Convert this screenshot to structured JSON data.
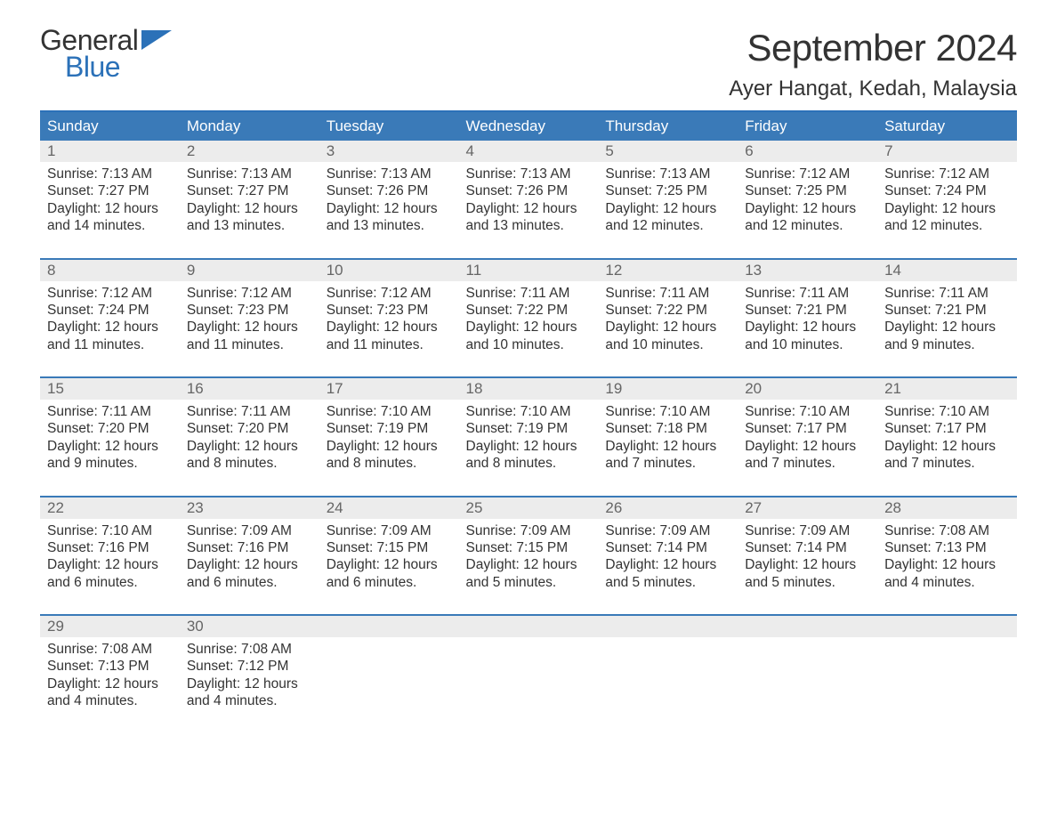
{
  "logo": {
    "text_general": "General",
    "text_blue": "Blue",
    "flag_color": "#2b71b8"
  },
  "title": "September 2024",
  "location": "Ayer Hangat, Kedah, Malaysia",
  "colors": {
    "header_bg": "#3a7ab8",
    "header_border": "#2b71b8",
    "daynum_bg": "#ececec",
    "daynum_text": "#666666",
    "body_text": "#333333",
    "background": "#ffffff"
  },
  "day_headers": [
    "Sunday",
    "Monday",
    "Tuesday",
    "Wednesday",
    "Thursday",
    "Friday",
    "Saturday"
  ],
  "weeks": [
    [
      {
        "n": "1",
        "sunrise": "Sunrise: 7:13 AM",
        "sunset": "Sunset: 7:27 PM",
        "d1": "Daylight: 12 hours",
        "d2": "and 14 minutes."
      },
      {
        "n": "2",
        "sunrise": "Sunrise: 7:13 AM",
        "sunset": "Sunset: 7:27 PM",
        "d1": "Daylight: 12 hours",
        "d2": "and 13 minutes."
      },
      {
        "n": "3",
        "sunrise": "Sunrise: 7:13 AM",
        "sunset": "Sunset: 7:26 PM",
        "d1": "Daylight: 12 hours",
        "d2": "and 13 minutes."
      },
      {
        "n": "4",
        "sunrise": "Sunrise: 7:13 AM",
        "sunset": "Sunset: 7:26 PM",
        "d1": "Daylight: 12 hours",
        "d2": "and 13 minutes."
      },
      {
        "n": "5",
        "sunrise": "Sunrise: 7:13 AM",
        "sunset": "Sunset: 7:25 PM",
        "d1": "Daylight: 12 hours",
        "d2": "and 12 minutes."
      },
      {
        "n": "6",
        "sunrise": "Sunrise: 7:12 AM",
        "sunset": "Sunset: 7:25 PM",
        "d1": "Daylight: 12 hours",
        "d2": "and 12 minutes."
      },
      {
        "n": "7",
        "sunrise": "Sunrise: 7:12 AM",
        "sunset": "Sunset: 7:24 PM",
        "d1": "Daylight: 12 hours",
        "d2": "and 12 minutes."
      }
    ],
    [
      {
        "n": "8",
        "sunrise": "Sunrise: 7:12 AM",
        "sunset": "Sunset: 7:24 PM",
        "d1": "Daylight: 12 hours",
        "d2": "and 11 minutes."
      },
      {
        "n": "9",
        "sunrise": "Sunrise: 7:12 AM",
        "sunset": "Sunset: 7:23 PM",
        "d1": "Daylight: 12 hours",
        "d2": "and 11 minutes."
      },
      {
        "n": "10",
        "sunrise": "Sunrise: 7:12 AM",
        "sunset": "Sunset: 7:23 PM",
        "d1": "Daylight: 12 hours",
        "d2": "and 11 minutes."
      },
      {
        "n": "11",
        "sunrise": "Sunrise: 7:11 AM",
        "sunset": "Sunset: 7:22 PM",
        "d1": "Daylight: 12 hours",
        "d2": "and 10 minutes."
      },
      {
        "n": "12",
        "sunrise": "Sunrise: 7:11 AM",
        "sunset": "Sunset: 7:22 PM",
        "d1": "Daylight: 12 hours",
        "d2": "and 10 minutes."
      },
      {
        "n": "13",
        "sunrise": "Sunrise: 7:11 AM",
        "sunset": "Sunset: 7:21 PM",
        "d1": "Daylight: 12 hours",
        "d2": "and 10 minutes."
      },
      {
        "n": "14",
        "sunrise": "Sunrise: 7:11 AM",
        "sunset": "Sunset: 7:21 PM",
        "d1": "Daylight: 12 hours",
        "d2": "and 9 minutes."
      }
    ],
    [
      {
        "n": "15",
        "sunrise": "Sunrise: 7:11 AM",
        "sunset": "Sunset: 7:20 PM",
        "d1": "Daylight: 12 hours",
        "d2": "and 9 minutes."
      },
      {
        "n": "16",
        "sunrise": "Sunrise: 7:11 AM",
        "sunset": "Sunset: 7:20 PM",
        "d1": "Daylight: 12 hours",
        "d2": "and 8 minutes."
      },
      {
        "n": "17",
        "sunrise": "Sunrise: 7:10 AM",
        "sunset": "Sunset: 7:19 PM",
        "d1": "Daylight: 12 hours",
        "d2": "and 8 minutes."
      },
      {
        "n": "18",
        "sunrise": "Sunrise: 7:10 AM",
        "sunset": "Sunset: 7:19 PM",
        "d1": "Daylight: 12 hours",
        "d2": "and 8 minutes."
      },
      {
        "n": "19",
        "sunrise": "Sunrise: 7:10 AM",
        "sunset": "Sunset: 7:18 PM",
        "d1": "Daylight: 12 hours",
        "d2": "and 7 minutes."
      },
      {
        "n": "20",
        "sunrise": "Sunrise: 7:10 AM",
        "sunset": "Sunset: 7:17 PM",
        "d1": "Daylight: 12 hours",
        "d2": "and 7 minutes."
      },
      {
        "n": "21",
        "sunrise": "Sunrise: 7:10 AM",
        "sunset": "Sunset: 7:17 PM",
        "d1": "Daylight: 12 hours",
        "d2": "and 7 minutes."
      }
    ],
    [
      {
        "n": "22",
        "sunrise": "Sunrise: 7:10 AM",
        "sunset": "Sunset: 7:16 PM",
        "d1": "Daylight: 12 hours",
        "d2": "and 6 minutes."
      },
      {
        "n": "23",
        "sunrise": "Sunrise: 7:09 AM",
        "sunset": "Sunset: 7:16 PM",
        "d1": "Daylight: 12 hours",
        "d2": "and 6 minutes."
      },
      {
        "n": "24",
        "sunrise": "Sunrise: 7:09 AM",
        "sunset": "Sunset: 7:15 PM",
        "d1": "Daylight: 12 hours",
        "d2": "and 6 minutes."
      },
      {
        "n": "25",
        "sunrise": "Sunrise: 7:09 AM",
        "sunset": "Sunset: 7:15 PM",
        "d1": "Daylight: 12 hours",
        "d2": "and 5 minutes."
      },
      {
        "n": "26",
        "sunrise": "Sunrise: 7:09 AM",
        "sunset": "Sunset: 7:14 PM",
        "d1": "Daylight: 12 hours",
        "d2": "and 5 minutes."
      },
      {
        "n": "27",
        "sunrise": "Sunrise: 7:09 AM",
        "sunset": "Sunset: 7:14 PM",
        "d1": "Daylight: 12 hours",
        "d2": "and 5 minutes."
      },
      {
        "n": "28",
        "sunrise": "Sunrise: 7:08 AM",
        "sunset": "Sunset: 7:13 PM",
        "d1": "Daylight: 12 hours",
        "d2": "and 4 minutes."
      }
    ],
    [
      {
        "n": "29",
        "sunrise": "Sunrise: 7:08 AM",
        "sunset": "Sunset: 7:13 PM",
        "d1": "Daylight: 12 hours",
        "d2": "and 4 minutes."
      },
      {
        "n": "30",
        "sunrise": "Sunrise: 7:08 AM",
        "sunset": "Sunset: 7:12 PM",
        "d1": "Daylight: 12 hours",
        "d2": "and 4 minutes."
      },
      {
        "n": "",
        "sunrise": "",
        "sunset": "",
        "d1": "",
        "d2": ""
      },
      {
        "n": "",
        "sunrise": "",
        "sunset": "",
        "d1": "",
        "d2": ""
      },
      {
        "n": "",
        "sunrise": "",
        "sunset": "",
        "d1": "",
        "d2": ""
      },
      {
        "n": "",
        "sunrise": "",
        "sunset": "",
        "d1": "",
        "d2": ""
      },
      {
        "n": "",
        "sunrise": "",
        "sunset": "",
        "d1": "",
        "d2": ""
      }
    ]
  ]
}
